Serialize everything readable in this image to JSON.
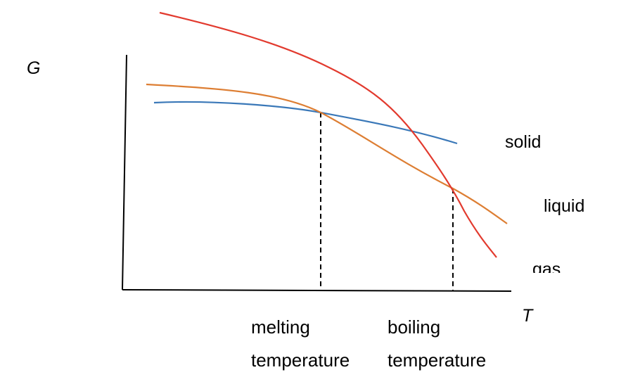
{
  "axes": {
    "y_label": "G",
    "x_label": "T"
  },
  "curves": {
    "solid": {
      "label": "solid",
      "color": "#3a78b8"
    },
    "liquid": {
      "label": "liquid",
      "color": "#dd7e33"
    },
    "gas": {
      "label": "gas",
      "color": "#e23a2e"
    }
  },
  "markers": {
    "melting": {
      "line1": "melting",
      "line2": "temperature"
    },
    "boiling": {
      "line1": "boiling",
      "line2": "temperature"
    }
  },
  "colors": {
    "axis": "#000000",
    "dashed": "#000000"
  }
}
